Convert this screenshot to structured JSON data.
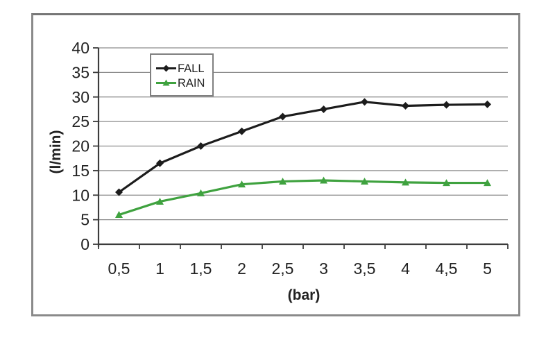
{
  "window": {
    "background": "#ffffff"
  },
  "frame": {
    "background": "#ffffff",
    "border_color": "#8a8a8a"
  },
  "chart_data": {
    "type": "line",
    "title": "",
    "xlabel": "(bar)",
    "ylabel": "(l/min)",
    "categories": [
      "0,5",
      "1",
      "1,5",
      "2",
      "2,5",
      "3",
      "3,5",
      "4",
      "4,5",
      "5"
    ],
    "x_values": [
      0.5,
      1,
      1.5,
      2,
      2.5,
      3,
      3.5,
      4,
      4.5,
      5
    ],
    "ylim": [
      0,
      40
    ],
    "ytick_step": 5,
    "ytick_labels": [
      "0",
      "5",
      "10",
      "15",
      "20",
      "25",
      "30",
      "35",
      "40"
    ],
    "grid": true,
    "legend_position": "inside-top-center",
    "series": [
      {
        "name": "FALL",
        "color": "#1c1c1c",
        "marker": "diamond",
        "values": [
          10.6,
          16.5,
          20,
          23,
          26,
          27.5,
          29,
          28.2,
          28.4,
          28.5
        ]
      },
      {
        "name": "RAIN",
        "color": "#3fa23f",
        "marker": "triangle",
        "values": [
          6,
          8.7,
          10.4,
          12.2,
          12.8,
          13,
          12.8,
          12.6,
          12.5,
          12.5
        ]
      }
    ],
    "styles": {
      "gridline_color": "#8c8c8c",
      "axis_color": "#3c3c3c",
      "text_color": "#222222",
      "legend_border_color": "#7f7f7f",
      "legend_background": "#ffffff"
    }
  }
}
